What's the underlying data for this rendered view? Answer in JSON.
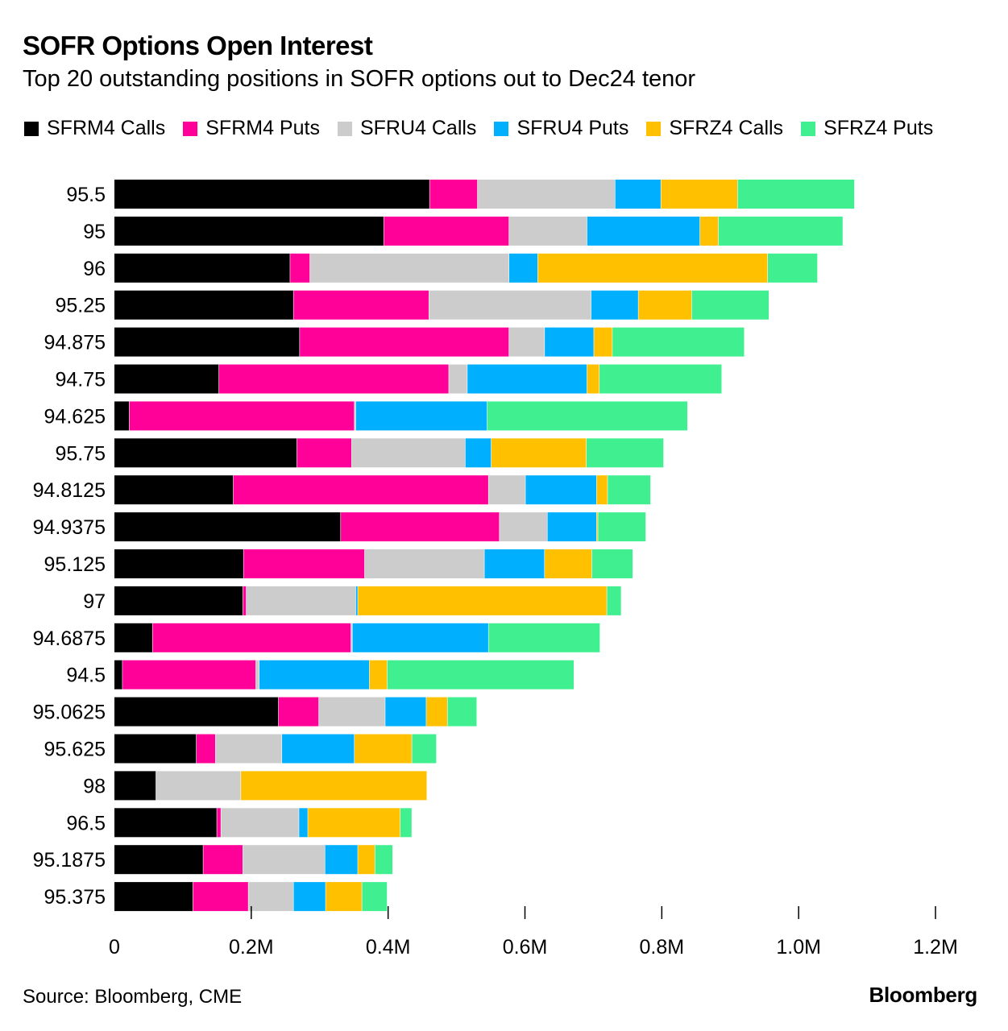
{
  "header": {
    "title": "SOFR Options Open Interest",
    "subtitle": "Top 20 outstanding positions in SOFR options out to Dec24 tenor"
  },
  "footer": {
    "source": "Source: Bloomberg, CME",
    "brand": "Bloomberg"
  },
  "chart_data": {
    "type": "bar",
    "orientation": "horizontal",
    "stacked": true,
    "title": "SOFR Options Open Interest",
    "subtitle": "Top 20 outstanding positions in SOFR options out to Dec24 tenor",
    "xlabel": "",
    "ylabel": "",
    "xlim": [
      0,
      1200000
    ],
    "x_ticks": [
      {
        "value": 0,
        "label": "0"
      },
      {
        "value": 200000,
        "label": "0.2M"
      },
      {
        "value": 400000,
        "label": "0.4M"
      },
      {
        "value": 600000,
        "label": "0.6M"
      },
      {
        "value": 800000,
        "label": "0.8M"
      },
      {
        "value": 1000000,
        "label": "1.0M"
      },
      {
        "value": 1200000,
        "label": "1.2M"
      }
    ],
    "grid": false,
    "legend_position": "top-left",
    "categories": [
      "95.5",
      "95",
      "96",
      "95.25",
      "94.875",
      "94.75",
      "94.625",
      "95.75",
      "94.8125",
      "94.9375",
      "95.125",
      "97",
      "94.6875",
      "94.5",
      "95.0625",
      "95.625",
      "98",
      "96.5",
      "95.1875",
      "95.375"
    ],
    "series": [
      {
        "name": "SFRM4 Calls",
        "color": "#000000",
        "values": [
          461000,
          394000,
          257000,
          262000,
          271000,
          153000,
          22000,
          267000,
          174000,
          331000,
          189000,
          188000,
          56000,
          12000,
          240000,
          120000,
          61000,
          150000,
          130000,
          115000
        ]
      },
      {
        "name": "SFRM4 Puts",
        "color": "#ff0099",
        "values": [
          70000,
          183000,
          29000,
          198000,
          306000,
          336000,
          329000,
          80000,
          373000,
          232000,
          177000,
          5000,
          290000,
          195000,
          59000,
          28000,
          0,
          6000,
          58000,
          81000
        ]
      },
      {
        "name": "SFRU4 Calls",
        "color": "#cccccc",
        "values": [
          201000,
          114000,
          291000,
          237000,
          52000,
          27000,
          2000,
          166000,
          54000,
          70000,
          175000,
          160000,
          2000,
          5000,
          97000,
          97000,
          124000,
          114000,
          120000,
          66000
        ]
      },
      {
        "name": "SFRU4 Puts",
        "color": "#00b0ff",
        "values": [
          67000,
          165000,
          42000,
          69000,
          72000,
          175000,
          192000,
          38000,
          104000,
          72000,
          88000,
          3000,
          199000,
          161000,
          60000,
          106000,
          0,
          13000,
          48000,
          47000
        ]
      },
      {
        "name": "SFRZ4 Calls",
        "color": "#ffc000",
        "values": [
          112000,
          27000,
          336000,
          78000,
          27000,
          18000,
          0,
          139000,
          16000,
          2000,
          69000,
          364000,
          0,
          26000,
          31000,
          84000,
          272000,
          135000,
          25000,
          53000
        ]
      },
      {
        "name": "SFRZ4 Puts",
        "color": "#40f090",
        "values": [
          171000,
          182000,
          73000,
          113000,
          193000,
          179000,
          293000,
          113000,
          63000,
          70000,
          60000,
          21000,
          163000,
          273000,
          43000,
          36000,
          0,
          17000,
          26000,
          37000
        ]
      }
    ]
  }
}
